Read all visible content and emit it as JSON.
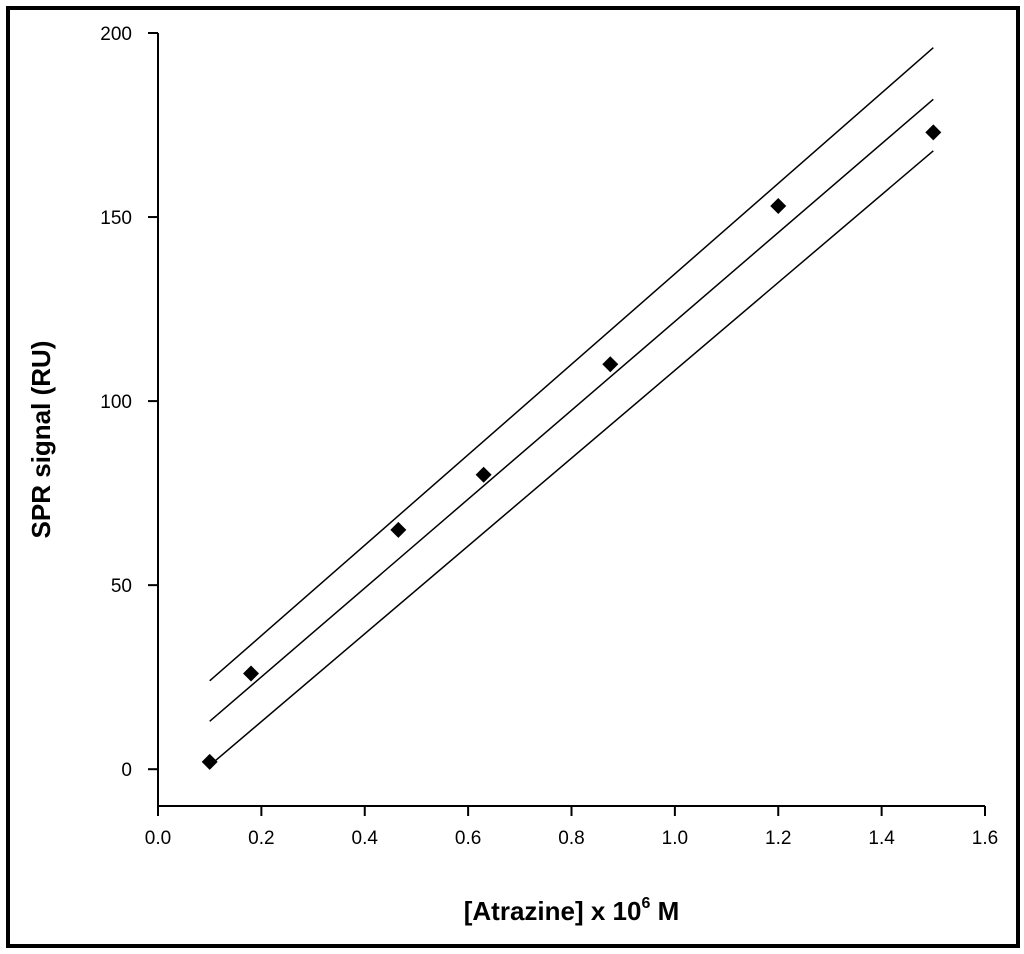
{
  "chart_data": {
    "type": "scatter",
    "title": "",
    "xlabel": "[Atrazine] x 10",
    "xlabel_sup": "6",
    "xlabel_suffix": " M",
    "ylabel": "SPR signal (RU)",
    "xlim": [
      0.0,
      1.6
    ],
    "ylim": [
      -10,
      200
    ],
    "x_ticks": [
      0.0,
      0.2,
      0.4,
      0.6,
      0.8,
      1.0,
      1.2,
      1.4,
      1.6
    ],
    "x_tick_labels": [
      "0.0",
      "0.2",
      "0.4",
      "0.6",
      "0.8",
      "1.0",
      "1.2",
      "1.4",
      "1.6"
    ],
    "y_ticks": [
      0,
      50,
      100,
      150,
      200
    ],
    "y_tick_labels": [
      "0",
      "50",
      "100",
      "150",
      "200"
    ],
    "grid": false,
    "series": [
      {
        "marker": "diamond",
        "color": "#000000",
        "x": [
          0.1,
          0.18,
          0.465,
          0.63,
          0.875,
          1.2,
          1.5
        ],
        "y": [
          2,
          26,
          65,
          80,
          110,
          153,
          173
        ]
      }
    ],
    "lines": [
      {
        "role": "regression",
        "x": [
          0.1,
          1.5
        ],
        "y": [
          13,
          182
        ]
      },
      {
        "role": "upper-confidence",
        "x": [
          0.1,
          1.5
        ],
        "y": [
          24,
          196
        ]
      },
      {
        "role": "lower-confidence",
        "x": [
          0.1,
          1.5
        ],
        "y": [
          1,
          168
        ]
      }
    ]
  }
}
